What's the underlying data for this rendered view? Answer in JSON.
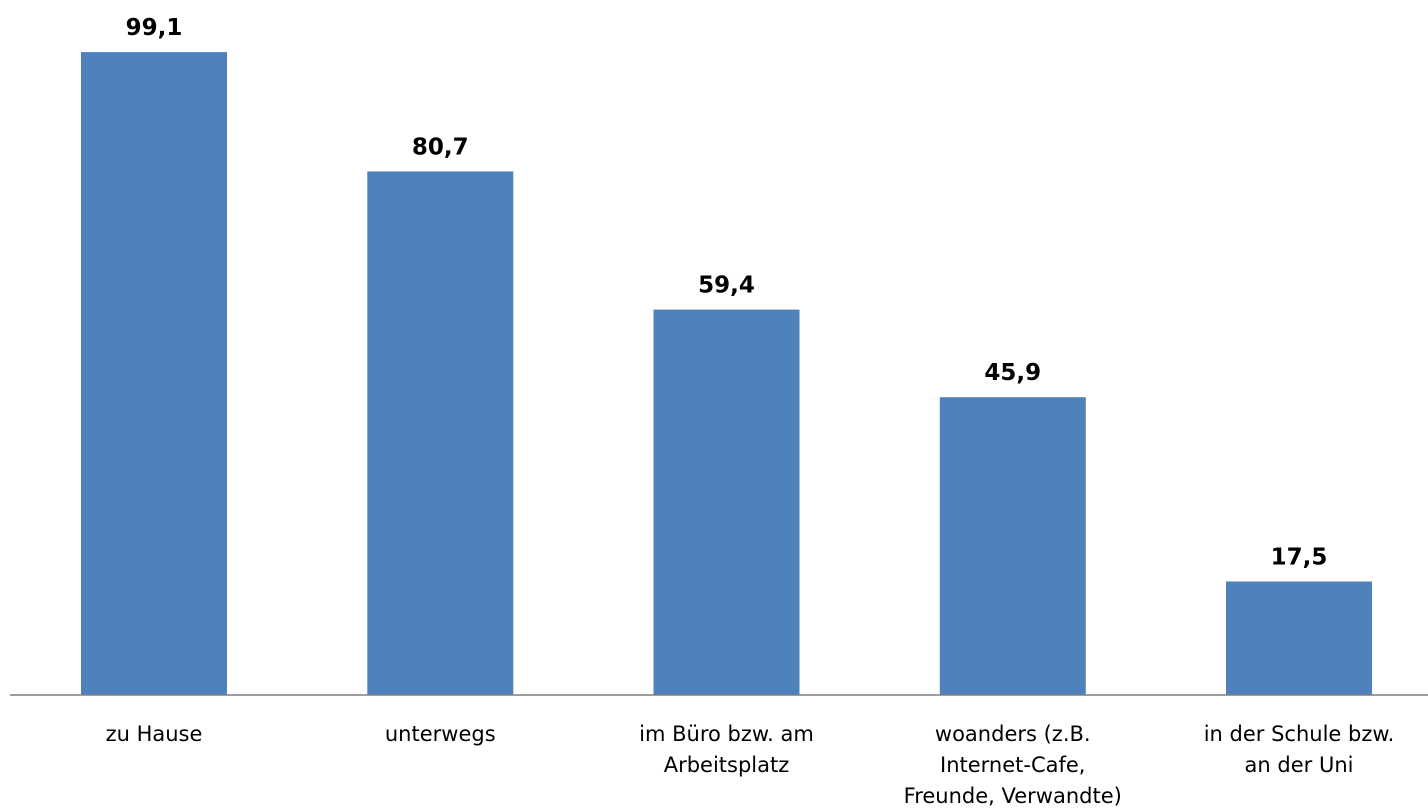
{
  "chart_data": {
    "type": "bar",
    "title": "",
    "xlabel": "",
    "ylabel": "",
    "ylim": [
      0,
      100
    ],
    "grid": false,
    "legend": "none",
    "bar_color": "#4f81bd",
    "axis_color": "#7f7f7f",
    "categories": [
      [
        "zu Hause"
      ],
      [
        "unterwegs"
      ],
      [
        "im Büro bzw. am",
        "Arbeitsplatz"
      ],
      [
        "woanders (z.B.",
        "Internet-Cafe,",
        "Freunde, Verwandte)"
      ],
      [
        "in der Schule bzw.",
        "an der Uni"
      ]
    ],
    "values": [
      99.1,
      80.7,
      59.4,
      45.9,
      17.5
    ],
    "value_labels": [
      "99,1",
      "80,7",
      "59,4",
      "45,9",
      "17,5"
    ]
  }
}
